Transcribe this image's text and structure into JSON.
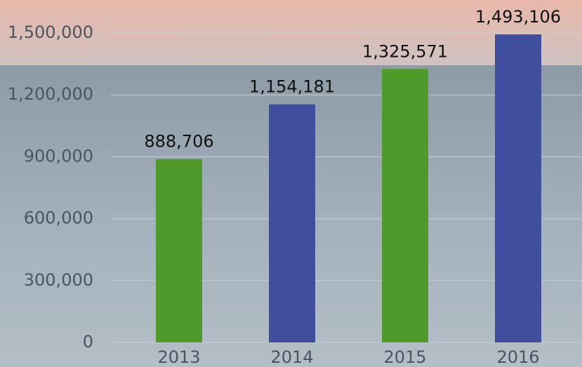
{
  "chart_data": {
    "type": "bar",
    "categories": [
      "2013",
      "2014",
      "2015",
      "2016"
    ],
    "values": [
      888706,
      1154181,
      1325571,
      1493106
    ],
    "value_labels": [
      "888,706",
      "1,154,181",
      "1,325,571",
      "1,493,106"
    ],
    "colors": [
      "#4f9a2b",
      "#3f4f9e",
      "#4f9a2b",
      "#3f4f9e"
    ],
    "ylim": [
      0,
      1500000
    ],
    "yticks": [
      0,
      {
        "value": 300000,
        "label": "300,000"
      },
      {
        "value": 600000,
        "label": "600,000"
      },
      {
        "value": 900000,
        "label": "900,000"
      },
      {
        "value": 1200000,
        "label": "1,200,000"
      },
      {
        "value": 1500000,
        "label": "1,500,000"
      }
    ],
    "grid": true
  }
}
